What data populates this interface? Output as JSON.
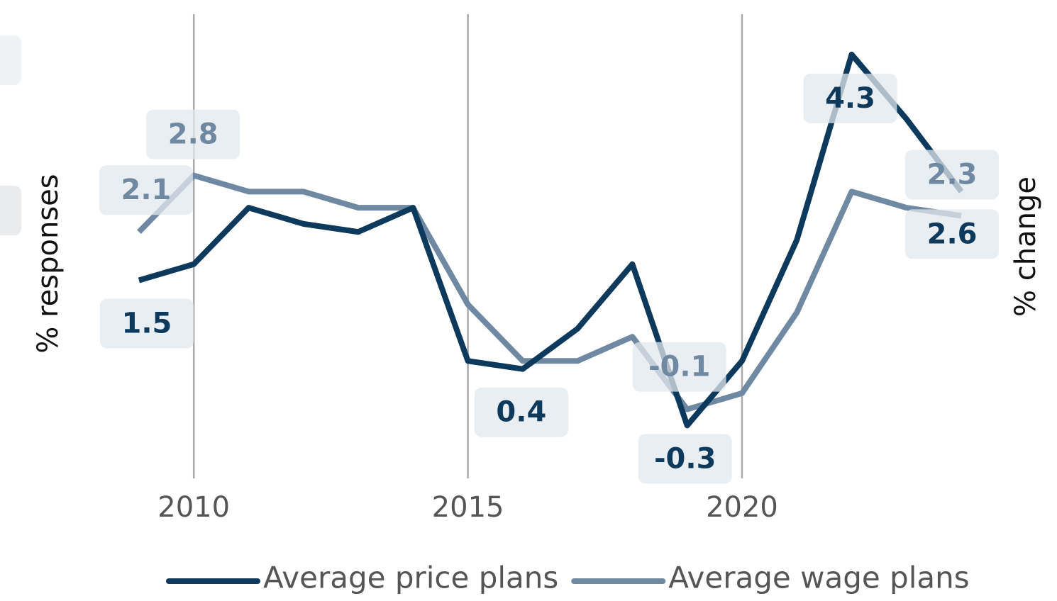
{
  "chart_data": {
    "type": "line",
    "x": [
      2009,
      2010,
      2011,
      2012,
      2013,
      2014,
      2015,
      2016,
      2017,
      2018,
      2019,
      2020,
      2021,
      2022,
      2023,
      2024
    ],
    "series": [
      {
        "name": "Average price plans",
        "color": "#0d3a5c",
        "values": [
          1.5,
          1.7,
          2.4,
          2.2,
          2.1,
          2.4,
          0.5,
          0.4,
          0.9,
          1.7,
          -0.3,
          0.5,
          2.0,
          4.3,
          3.5,
          2.6
        ]
      },
      {
        "name": "Average wage plans",
        "color": "#6f89a3",
        "values": [
          2.1,
          2.8,
          2.6,
          2.6,
          2.4,
          2.4,
          1.2,
          0.5,
          0.5,
          0.8,
          -0.1,
          0.1,
          1.1,
          2.6,
          2.4,
          2.3
        ]
      }
    ],
    "xlim": [
      2007.5,
      2025.5
    ],
    "xticks": [
      2010,
      2015,
      2020
    ],
    "ylim": [
      -1,
      4.8
    ],
    "y_label": "% responses",
    "y2_label": "% change",
    "grid": true
  }
}
